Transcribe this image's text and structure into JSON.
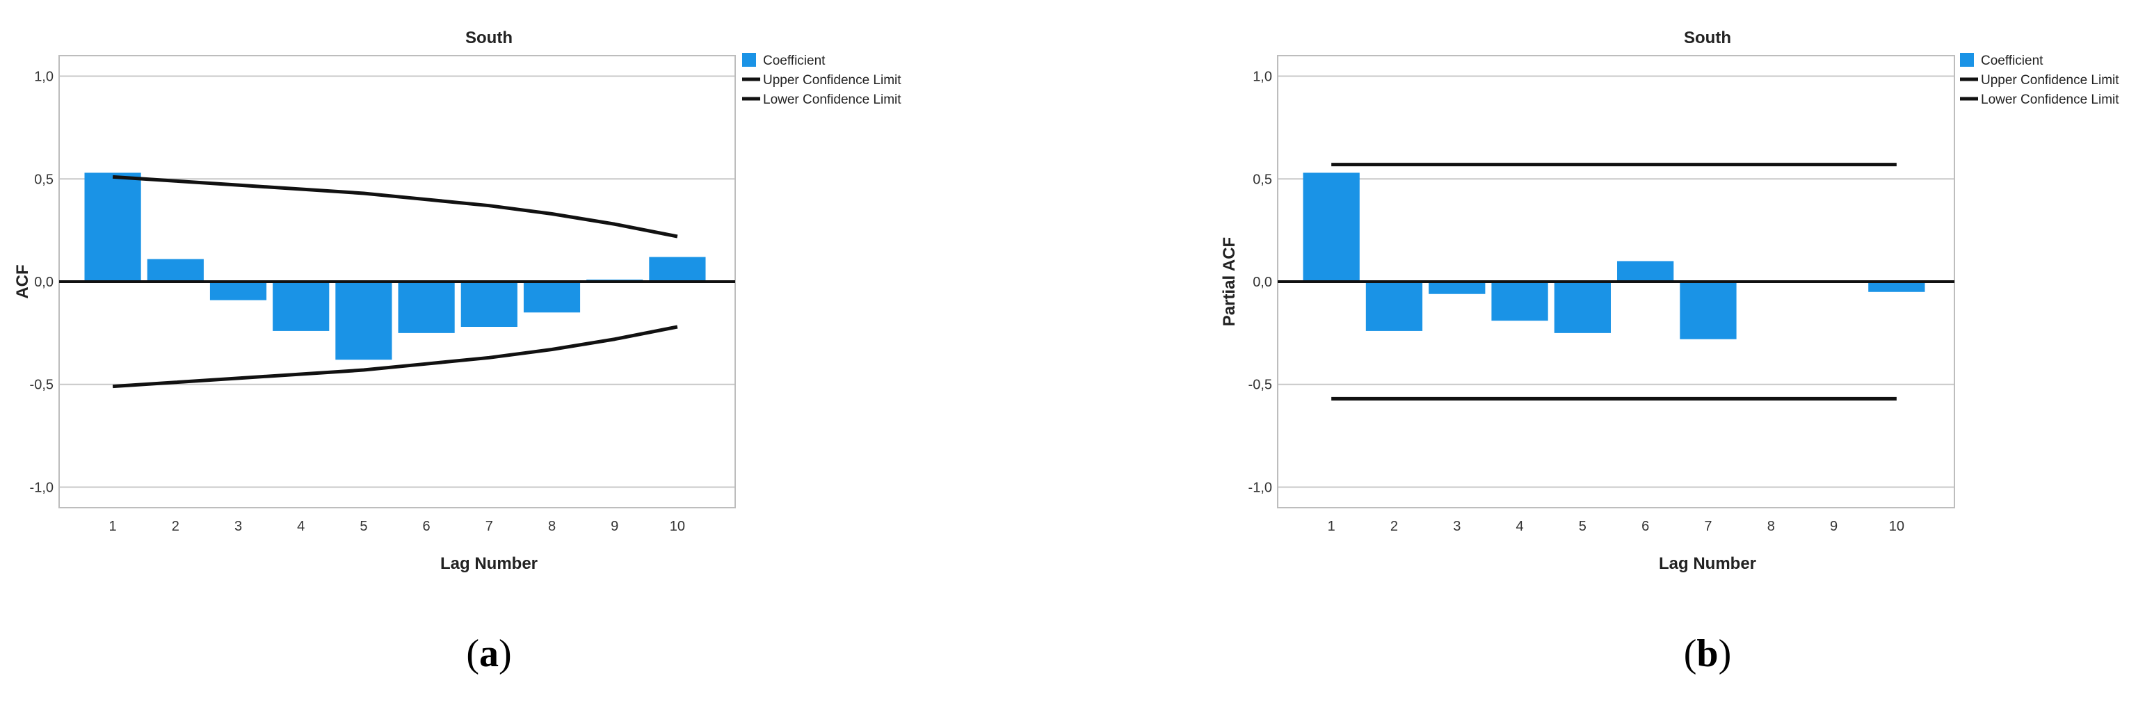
{
  "chart_data": [
    {
      "panel": "a",
      "type": "bar",
      "title": "South",
      "xlabel": "Lag Number",
      "ylabel": "ACF",
      "ylim": [
        -1.1,
        1.1
      ],
      "yticks": [
        "-1,0",
        "-0,5",
        "0,0",
        "0,5",
        "1,0"
      ],
      "categories": [
        "1",
        "2",
        "3",
        "4",
        "5",
        "6",
        "7",
        "8",
        "9",
        "10"
      ],
      "series": [
        {
          "name": "Coefficient",
          "values": [
            0.53,
            0.11,
            -0.09,
            -0.24,
            -0.38,
            -0.25,
            -0.22,
            -0.15,
            0.01,
            0.12
          ]
        },
        {
          "name": "Upper Confidence Limit",
          "values": [
            0.51,
            0.49,
            0.47,
            0.45,
            0.43,
            0.4,
            0.37,
            0.33,
            0.28,
            0.22
          ]
        },
        {
          "name": "Lower Confidence Limit",
          "values": [
            -0.51,
            -0.49,
            -0.47,
            -0.45,
            -0.43,
            -0.4,
            -0.37,
            -0.33,
            -0.28,
            -0.22
          ]
        }
      ],
      "legend_position": "top-right",
      "grid": true,
      "caption": "a",
      "colors": {
        "bar": "#1a93e6",
        "limit": "#111111",
        "grid": "#c8c8c8"
      }
    },
    {
      "panel": "b",
      "type": "bar",
      "title": "South",
      "xlabel": "Lag Number",
      "ylabel": "Partial ACF",
      "ylim": [
        -1.1,
        1.1
      ],
      "yticks": [
        "-1,0",
        "-0,5",
        "0,0",
        "0,5",
        "1,0"
      ],
      "categories": [
        "1",
        "2",
        "3",
        "4",
        "5",
        "6",
        "7",
        "8",
        "9",
        "10"
      ],
      "series": [
        {
          "name": "Coefficient",
          "values": [
            0.53,
            -0.24,
            -0.06,
            -0.19,
            -0.25,
            0.1,
            -0.28,
            0.0,
            0.0,
            -0.05
          ]
        },
        {
          "name": "Upper Confidence Limit",
          "values": [
            0.57,
            0.57,
            0.57,
            0.57,
            0.57,
            0.57,
            0.57,
            0.57,
            0.57,
            0.57
          ]
        },
        {
          "name": "Lower Confidence Limit",
          "values": [
            -0.57,
            -0.57,
            -0.57,
            -0.57,
            -0.57,
            -0.57,
            -0.57,
            -0.57,
            -0.57,
            -0.57
          ]
        }
      ],
      "legend_position": "top-right",
      "grid": true,
      "caption": "b",
      "colors": {
        "bar": "#1a93e6",
        "limit": "#111111",
        "grid": "#c8c8c8"
      }
    }
  ]
}
